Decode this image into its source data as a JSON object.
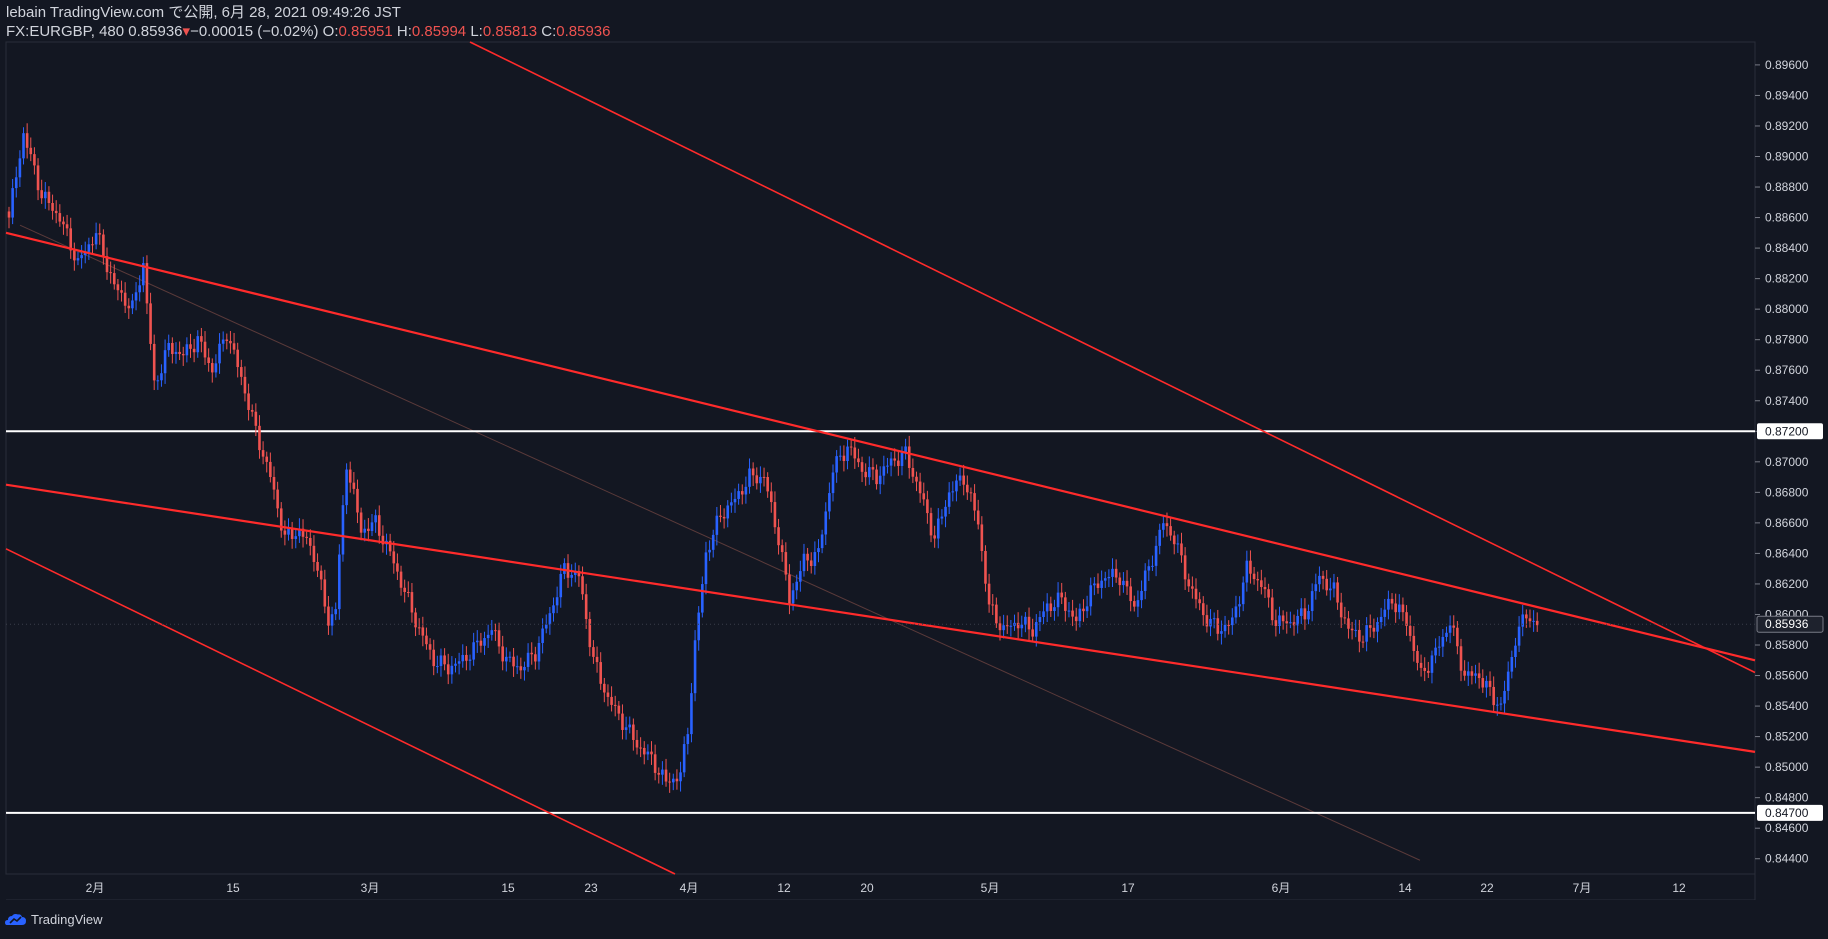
{
  "header": {
    "publisher_line": "lebain TradingView.com で公開, 6月 28, 2021 09:49:26 JST",
    "symbol": "FX:EURGBP, 480",
    "last": "0.85936",
    "change": "−0.00015 (−0.02%)",
    "o_label": "O:",
    "o_value": "0.85951",
    "h_label": "H:",
    "h_value": "0.85994",
    "l_label": "L:",
    "l_value": "0.85813",
    "c_label": "C:",
    "c_value": "0.85936"
  },
  "footer": {
    "brand": "TradingView"
  },
  "colors": {
    "background": "#131722",
    "up": "#2962ff",
    "down": "#ef5350",
    "trendline": "#ff2b2b",
    "hline": "#ffffff",
    "text": "#d1d4dc"
  },
  "chart_data": {
    "type": "candlestick",
    "symbol": "FX:EURGBP",
    "timeframe": "480",
    "ylim": [
      0.843,
      0.8975
    ],
    "y_ticks": [
      "0.89600",
      "0.89400",
      "0.89200",
      "0.89000",
      "0.88800",
      "0.88600",
      "0.88400",
      "0.88200",
      "0.88000",
      "0.87800",
      "0.87600",
      "0.87400",
      "0.87200",
      "0.87000",
      "0.86800",
      "0.86600",
      "0.86400",
      "0.86200",
      "0.86000",
      "0.85800",
      "0.85600",
      "0.85400",
      "0.85200",
      "0.85000",
      "0.84800",
      "0.84600",
      "0.84400"
    ],
    "x_ticks": [
      "2月",
      "15",
      "3月",
      "15",
      "23",
      "4月",
      "12",
      "20",
      "5月",
      "17",
      "6月",
      "14",
      "22",
      "7月",
      "12"
    ],
    "price_labels": [
      {
        "value": 0.872,
        "text": "0.87200",
        "style": "horizontal-line"
      },
      {
        "value": 0.847,
        "text": "0.84700",
        "style": "horizontal-line"
      },
      {
        "value": 0.85936,
        "text": "0.85936",
        "style": "last-price"
      }
    ],
    "horizontal_lines": [
      0.872,
      0.847
    ],
    "price_path": [
      [
        0,
        0.886
      ],
      [
        4,
        0.8915
      ],
      [
        9,
        0.8875
      ],
      [
        14,
        0.886
      ],
      [
        19,
        0.883
      ],
      [
        24,
        0.885
      ],
      [
        29,
        0.8815
      ],
      [
        34,
        0.88
      ],
      [
        37,
        0.883
      ],
      [
        40,
        0.875
      ],
      [
        44,
        0.8775
      ],
      [
        48,
        0.877
      ],
      [
        52,
        0.878
      ],
      [
        56,
        0.876
      ],
      [
        60,
        0.8785
      ],
      [
        64,
        0.8755
      ],
      [
        68,
        0.872
      ],
      [
        72,
        0.869
      ],
      [
        76,
        0.865
      ],
      [
        80,
        0.8655
      ],
      [
        84,
        0.864
      ],
      [
        88,
        0.8595
      ],
      [
        90,
        0.8605
      ],
      [
        93,
        0.87
      ],
      [
        97,
        0.8655
      ],
      [
        101,
        0.866
      ],
      [
        105,
        0.864
      ],
      [
        109,
        0.8615
      ],
      [
        113,
        0.859
      ],
      [
        117,
        0.857
      ],
      [
        121,
        0.8565
      ],
      [
        125,
        0.857
      ],
      [
        129,
        0.858
      ],
      [
        133,
        0.859
      ],
      [
        137,
        0.857
      ],
      [
        141,
        0.8565
      ],
      [
        145,
        0.8575
      ],
      [
        149,
        0.86
      ],
      [
        153,
        0.863
      ],
      [
        157,
        0.8625
      ],
      [
        161,
        0.857
      ],
      [
        165,
        0.8545
      ],
      [
        169,
        0.853
      ],
      [
        173,
        0.8515
      ],
      [
        177,
        0.8505
      ],
      [
        181,
        0.849
      ],
      [
        185,
        0.8495
      ],
      [
        187,
        0.8525
      ],
      [
        189,
        0.858
      ],
      [
        192,
        0.864
      ],
      [
        196,
        0.8665
      ],
      [
        200,
        0.8675
      ],
      [
        204,
        0.869
      ],
      [
        208,
        0.869
      ],
      [
        212,
        0.865
      ],
      [
        215,
        0.861
      ],
      [
        219,
        0.8635
      ],
      [
        223,
        0.864
      ],
      [
        227,
        0.8695
      ],
      [
        231,
        0.871
      ],
      [
        235,
        0.8695
      ],
      [
        239,
        0.869
      ],
      [
        243,
        0.87
      ],
      [
        247,
        0.8705
      ],
      [
        251,
        0.868
      ],
      [
        255,
        0.865
      ],
      [
        259,
        0.868
      ],
      [
        263,
        0.869
      ],
      [
        267,
        0.866
      ],
      [
        270,
        0.8605
      ],
      [
        274,
        0.859
      ],
      [
        278,
        0.8595
      ],
      [
        282,
        0.859
      ],
      [
        286,
        0.8605
      ],
      [
        290,
        0.861
      ],
      [
        294,
        0.8595
      ],
      [
        298,
        0.8615
      ],
      [
        302,
        0.8625
      ],
      [
        306,
        0.8625
      ],
      [
        310,
        0.8605
      ],
      [
        314,
        0.863
      ],
      [
        318,
        0.866
      ],
      [
        321,
        0.865
      ],
      [
        325,
        0.862
      ],
      [
        329,
        0.86
      ],
      [
        333,
        0.859
      ],
      [
        337,
        0.8595
      ],
      [
        341,
        0.863
      ],
      [
        345,
        0.862
      ],
      [
        349,
        0.8595
      ],
      [
        353,
        0.8595
      ],
      [
        357,
        0.86
      ],
      [
        361,
        0.8625
      ],
      [
        365,
        0.8615
      ],
      [
        369,
        0.859
      ],
      [
        373,
        0.8585
      ],
      [
        377,
        0.8595
      ],
      [
        381,
        0.861
      ],
      [
        385,
        0.8595
      ],
      [
        389,
        0.856
      ],
      [
        393,
        0.8575
      ],
      [
        397,
        0.8595
      ],
      [
        401,
        0.856
      ],
      [
        405,
        0.856
      ],
      [
        409,
        0.8545
      ],
      [
        411,
        0.854
      ],
      [
        413,
        0.856
      ],
      [
        415,
        0.8585
      ],
      [
        418,
        0.86
      ],
      [
        421,
        0.8593
      ]
    ],
    "drawings": [
      {
        "name": "upper-channel-trendline"
      },
      {
        "name": "middle-channel-trendline"
      },
      {
        "name": "outer-trendline-top"
      },
      {
        "name": "outer-trendline-bottom"
      },
      {
        "name": "faint-diagonal-line"
      }
    ]
  }
}
